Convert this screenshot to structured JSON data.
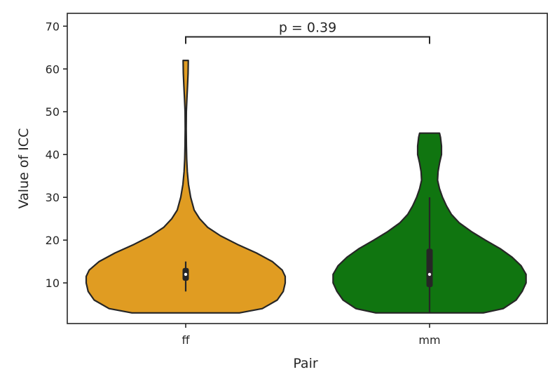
{
  "chart_data": {
    "type": "violin",
    "xlabel": "Pair",
    "ylabel": "Value of ICC",
    "ylim": [
      0.5,
      73
    ],
    "yticks": [
      10,
      20,
      30,
      40,
      50,
      60,
      70
    ],
    "categories": [
      "ff",
      "mm"
    ],
    "colors": {
      "ff": "#e09c22",
      "mm": "#107510",
      "outline": "#262626"
    },
    "violins": [
      {
        "category": "ff",
        "color": "#e09c22",
        "min": 3,
        "max": 62,
        "q1": 10.5,
        "median": 12,
        "q3": 13.5,
        "whisker_low": 8,
        "whisker_high": 15,
        "density": [
          [
            3,
            0.54
          ],
          [
            4,
            0.77
          ],
          [
            6,
            0.92
          ],
          [
            8,
            0.98
          ],
          [
            10,
            1.0
          ],
          [
            11.5,
            1.0
          ],
          [
            13,
            0.97
          ],
          [
            15,
            0.87
          ],
          [
            17,
            0.71
          ],
          [
            19,
            0.52
          ],
          [
            21,
            0.35
          ],
          [
            23,
            0.22
          ],
          [
            25,
            0.14
          ],
          [
            27,
            0.085
          ],
          [
            30,
            0.05
          ],
          [
            33,
            0.028
          ],
          [
            36,
            0.016
          ],
          [
            39,
            0.01
          ],
          [
            42,
            0.007
          ],
          [
            46,
            0.005
          ],
          [
            50,
            0.006
          ],
          [
            53,
            0.012
          ],
          [
            56,
            0.018
          ],
          [
            59,
            0.024
          ],
          [
            62,
            0.026
          ]
        ]
      },
      {
        "category": "mm",
        "color": "#107510",
        "min": 3,
        "max": 45,
        "q1": 9,
        "median": 12,
        "q3": 18,
        "whisker_low": 3,
        "whisker_high": 30,
        "density": [
          [
            3,
            0.54
          ],
          [
            4,
            0.74
          ],
          [
            6,
            0.87
          ],
          [
            8,
            0.93
          ],
          [
            10,
            0.97
          ],
          [
            12,
            0.97
          ],
          [
            14,
            0.92
          ],
          [
            16,
            0.83
          ],
          [
            18,
            0.71
          ],
          [
            20,
            0.56
          ],
          [
            22,
            0.42
          ],
          [
            24,
            0.3
          ],
          [
            26,
            0.22
          ],
          [
            28,
            0.17
          ],
          [
            30,
            0.13
          ],
          [
            32,
            0.1
          ],
          [
            34,
            0.08
          ],
          [
            36,
            0.085
          ],
          [
            38,
            0.1
          ],
          [
            40,
            0.12
          ],
          [
            42,
            0.12
          ],
          [
            44,
            0.11
          ],
          [
            45,
            0.1
          ]
        ]
      }
    ],
    "annotation": {
      "text": "p = 0.39",
      "y_value": 67.5,
      "between": [
        "ff",
        "mm"
      ]
    }
  }
}
